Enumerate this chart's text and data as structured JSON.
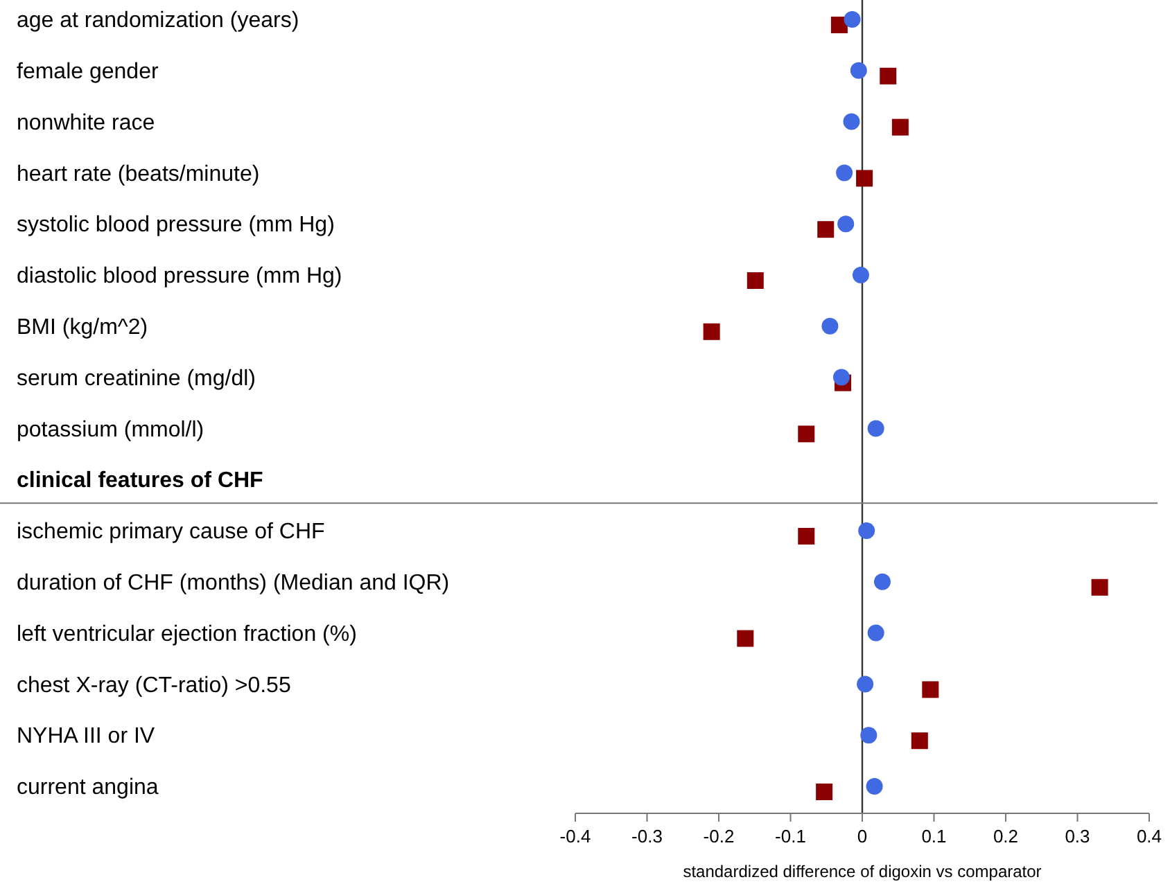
{
  "chart_data": {
    "type": "scatter",
    "orientation": "horizontal",
    "categories": [
      "age at randomization (years)",
      "female gender",
      "nonwhite race",
      "heart rate (beats/minute)",
      "systolic blood pressure (mm Hg)",
      "diastolic blood pressure (mm Hg)",
      "BMI (kg/m^2)",
      "serum creatinine (mg/dl)",
      "potassium (mmol/l)",
      "clinical features of CHF",
      "ischemic primary cause of CHF",
      "duration of CHF (months) (Median and IQR)",
      "left ventricular ejection fraction (%)",
      "chest X-ray (CT-ratio) >0.55",
      "NYHA III or IV",
      "current angina"
    ],
    "series": [
      {
        "color": "#8b0000",
        "marker": "square",
        "values": [
          -0.032,
          0.036,
          0.053,
          0.003,
          -0.051,
          -0.149,
          -0.21,
          -0.027,
          -0.078,
          null,
          -0.078,
          0.331,
          -0.163,
          0.095,
          0.08,
          -0.053
        ]
      },
      {
        "color": "#4169e1",
        "marker": "circle",
        "values": [
          -0.014,
          -0.005,
          -0.015,
          -0.025,
          -0.023,
          -0.002,
          -0.045,
          -0.029,
          0.019,
          null,
          0.006,
          0.028,
          0.019,
          0.004,
          0.009,
          0.017
        ]
      }
    ],
    "xlim": [
      -0.4,
      0.4
    ],
    "xticks": [
      -0.4,
      -0.3,
      -0.2,
      -0.1,
      0,
      0.1,
      0.2,
      0.3,
      0.4
    ],
    "xlabel": "standardized difference of digoxin vs comparator",
    "ref_lines": [
      {
        "axis": "x",
        "value": 0,
        "color": "#333333"
      },
      {
        "axis": "y",
        "value": "clinical features of CHF",
        "color": "#777777"
      }
    ],
    "grid": false
  }
}
